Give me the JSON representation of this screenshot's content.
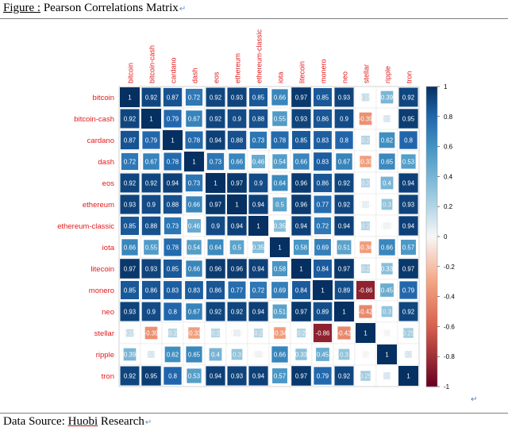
{
  "caption": {
    "figure_prefix": "Figure :",
    "figure_title": " Pearson Correlations Matrix",
    "source_prefix": "Data Source: ",
    "source_name": "Huobi",
    "source_suffix": " Research"
  },
  "chart_data": {
    "type": "heatmap",
    "title": "",
    "labels": [
      "bitcoin",
      "bitcoin-cash",
      "cardano",
      "dash",
      "eos",
      "ethereum",
      "ethereum-classic",
      "iota",
      "litecoin",
      "monero",
      "neo",
      "stellar",
      "ripple",
      "tron"
    ],
    "matrix": [
      [
        1,
        0.92,
        0.87,
        0.72,
        0.92,
        0.93,
        0.85,
        0.66,
        0.97,
        0.85,
        0.93,
        0.15,
        0.39,
        0.92
      ],
      [
        0.92,
        1,
        0.79,
        0.67,
        0.92,
        0.9,
        0.88,
        0.55,
        0.93,
        0.86,
        0.9,
        -0.39,
        0.1,
        0.95
      ],
      [
        0.87,
        0.79,
        1,
        0.78,
        0.94,
        0.88,
        0.73,
        0.78,
        0.85,
        0.83,
        0.8,
        0.2,
        0.62,
        0.8
      ],
      [
        0.72,
        0.67,
        0.78,
        1,
        0.73,
        0.66,
        0.46,
        0.54,
        0.66,
        0.83,
        0.67,
        -0.33,
        0.65,
        0.53
      ],
      [
        0.92,
        0.92,
        0.94,
        0.73,
        1,
        0.97,
        0.9,
        0.64,
        0.96,
        0.86,
        0.92,
        0.2,
        0.4,
        0.94
      ],
      [
        0.93,
        0.9,
        0.88,
        0.66,
        0.97,
        1,
        0.94,
        0.5,
        0.96,
        0.77,
        0.92,
        0.05,
        0.3,
        0.93
      ],
      [
        0.85,
        0.88,
        0.73,
        0.46,
        0.9,
        0.94,
        1,
        0.35,
        0.94,
        0.72,
        0.94,
        0.2,
        0.02,
        0.94
      ],
      [
        0.66,
        0.55,
        0.78,
        0.54,
        0.64,
        0.5,
        0.35,
        1,
        0.58,
        0.69,
        0.51,
        -0.34,
        0.66,
        0.57
      ],
      [
        0.97,
        0.93,
        0.85,
        0.66,
        0.96,
        0.96,
        0.94,
        0.58,
        1,
        0.84,
        0.97,
        0.2,
        0.33,
        0.97
      ],
      [
        0.85,
        0.86,
        0.83,
        0.83,
        0.86,
        0.77,
        0.72,
        0.69,
        0.84,
        1,
        0.89,
        -0.86,
        0.45,
        0.79
      ],
      [
        0.93,
        0.9,
        0.8,
        0.67,
        0.92,
        0.92,
        0.94,
        0.51,
        0.97,
        0.89,
        1,
        -0.42,
        0.3,
        0.92
      ],
      [
        0.15,
        -0.39,
        0.2,
        -0.33,
        0.2,
        0.05,
        0.2,
        -0.34,
        0.2,
        -0.86,
        -0.42,
        1,
        0,
        0.25
      ],
      [
        0.39,
        0.1,
        0.62,
        0.65,
        0.4,
        0.3,
        0.02,
        0.66,
        0.33,
        0.45,
        0.3,
        0,
        1,
        0.1
      ],
      [
        0.92,
        0.95,
        0.8,
        0.53,
        0.94,
        0.93,
        0.94,
        0.57,
        0.97,
        0.79,
        0.92,
        0.25,
        0.1,
        1
      ]
    ],
    "color_range": [
      -1,
      1
    ],
    "colorbar_ticks": [
      1,
      0.8,
      0.6,
      0.4,
      0.2,
      0,
      -0.2,
      -0.4,
      -0.6,
      -0.8,
      -1
    ],
    "colors": {
      "negative": "#67001f",
      "mid": "#f7f7f7",
      "positive": "#053061",
      "label": "#e31a1c"
    },
    "legend_position": "right"
  }
}
